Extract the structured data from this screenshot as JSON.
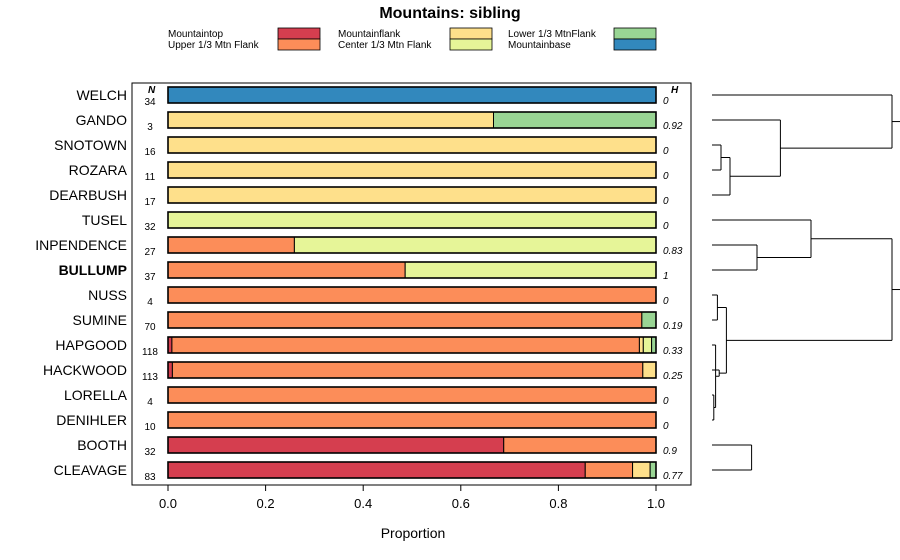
{
  "chart_data": {
    "type": "bar",
    "orientation": "horizontal-stacked",
    "title": "Mountains: sibling",
    "xlabel": "Proportion",
    "xlim": [
      0,
      1
    ],
    "xticks": [
      "0.0",
      "0.2",
      "0.4",
      "0.6",
      "0.8",
      "1.0"
    ],
    "n_header": "N",
    "h_header": "H",
    "categories_legend": [
      {
        "name": "Mountaintop",
        "color": "#d53e4f"
      },
      {
        "name": "Upper 1/3 Mtn Flank",
        "color": "#fc8d59"
      },
      {
        "name": "Mountainflank",
        "color": "#fee08b"
      },
      {
        "name": "Center 1/3 Mtn Flank",
        "color": "#e6f598"
      },
      {
        "name": "Lower 1/3 MtnFlank",
        "color": "#99d594"
      },
      {
        "name": "Mountainbase",
        "color": "#3288bd"
      }
    ],
    "rows": [
      {
        "label": "WELCH",
        "bold": false,
        "n": "34",
        "h": "0",
        "values": [
          0,
          0,
          0,
          0,
          0,
          1
        ]
      },
      {
        "label": "GANDO",
        "bold": false,
        "n": "3",
        "h": "0.92",
        "values": [
          0,
          0,
          0.667,
          0,
          0.333,
          0
        ]
      },
      {
        "label": "SNOTOWN",
        "bold": false,
        "n": "16",
        "h": "0",
        "values": [
          0,
          0,
          1,
          0,
          0,
          0
        ]
      },
      {
        "label": "ROZARA",
        "bold": false,
        "n": "11",
        "h": "0",
        "values": [
          0,
          0,
          1,
          0,
          0,
          0
        ]
      },
      {
        "label": "DEARBUSH",
        "bold": false,
        "n": "17",
        "h": "0",
        "values": [
          0,
          0,
          1,
          0,
          0,
          0
        ]
      },
      {
        "label": "TUSEL",
        "bold": false,
        "n": "32",
        "h": "0",
        "values": [
          0,
          0,
          0,
          1,
          0,
          0
        ]
      },
      {
        "label": "INPENDENCE",
        "bold": false,
        "n": "27",
        "h": "0.83",
        "values": [
          0,
          0.259,
          0,
          0.741,
          0,
          0
        ]
      },
      {
        "label": "BULLUMP",
        "bold": true,
        "n": "37",
        "h": "1",
        "values": [
          0,
          0.486,
          0,
          0.514,
          0,
          0
        ]
      },
      {
        "label": "NUSS",
        "bold": false,
        "n": "4",
        "h": "0",
        "values": [
          0,
          1,
          0,
          0,
          0,
          0
        ]
      },
      {
        "label": "SUMINE",
        "bold": false,
        "n": "70",
        "h": "0.19",
        "values": [
          0,
          0.971,
          0,
          0,
          0.029,
          0
        ]
      },
      {
        "label": "HAPGOOD",
        "bold": false,
        "n": "118",
        "h": "0.33",
        "values": [
          0.008,
          0.958,
          0.008,
          0.017,
          0.009,
          0
        ]
      },
      {
        "label": "HACKWOOD",
        "bold": false,
        "n": "113",
        "h": "0.25",
        "values": [
          0.009,
          0.964,
          0.027,
          0,
          0,
          0
        ]
      },
      {
        "label": "LORELLA",
        "bold": false,
        "n": "4",
        "h": "0",
        "values": [
          0,
          1,
          0,
          0,
          0,
          0
        ]
      },
      {
        "label": "DENIHLER",
        "bold": false,
        "n": "10",
        "h": "0",
        "values": [
          0,
          1,
          0,
          0,
          0,
          0
        ]
      },
      {
        "label": "BOOTH",
        "bold": false,
        "n": "32",
        "h": "0.9",
        "values": [
          0.688,
          0.312,
          0,
          0,
          0,
          0
        ]
      },
      {
        "label": "CLEAVAGE",
        "bold": false,
        "n": "83",
        "h": "0.77",
        "values": [
          0.855,
          0.097,
          0.036,
          0,
          0.012,
          0
        ]
      }
    ],
    "dendrogram": {
      "leaf_order": [
        "WELCH",
        "GANDO",
        "SNOTOWN",
        "ROZARA",
        "DEARBUSH",
        "TUSEL",
        "INPENDENCE",
        "BULLUMP",
        "NUSS",
        "SUMINE",
        "HAPGOOD",
        "HACKWOOD",
        "LORELLA",
        "DENIHLER",
        "BOOTH",
        "CLEAVAGE"
      ],
      "merges": [
        [
          2,
          3,
          0.05
        ],
        [
          16,
          4,
          0.1
        ],
        [
          1,
          17,
          0.38
        ],
        [
          6,
          7,
          0.25
        ],
        [
          5,
          19,
          0.55
        ],
        [
          0,
          18,
          1.0
        ],
        [
          12,
          13,
          0.01
        ],
        [
          10,
          22,
          0.02
        ],
        [
          8,
          9,
          0.03
        ],
        [
          23,
          11,
          0.04
        ],
        [
          24,
          25,
          0.08
        ],
        [
          14,
          15,
          0.22
        ],
        [
          20,
          26,
          1.0
        ],
        [
          21,
          28,
          1.05
        ]
      ]
    }
  }
}
